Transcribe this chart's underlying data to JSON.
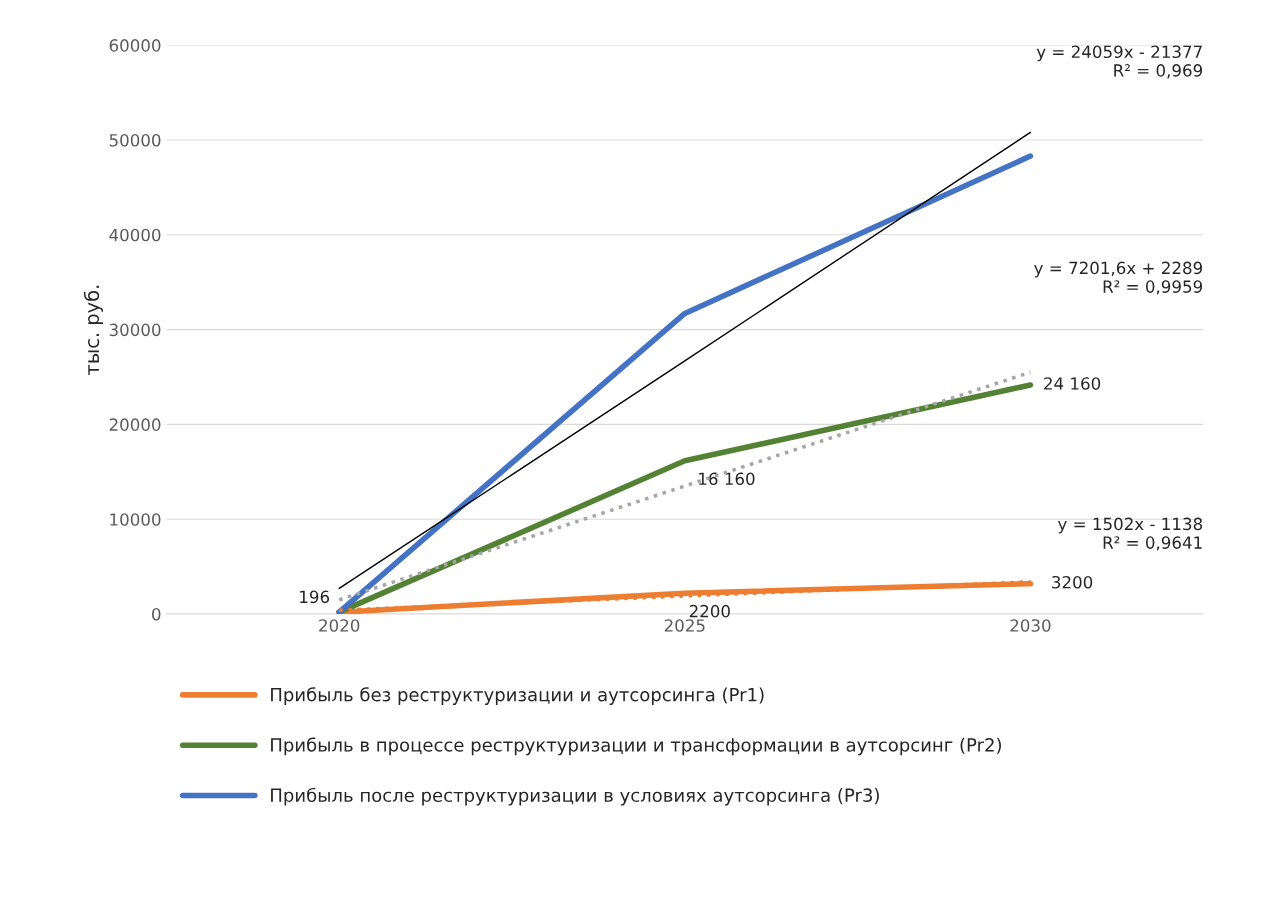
{
  "chart_data": {
    "type": "line",
    "ylabel": "тыс. руб.",
    "categories": [
      "2020",
      "2025",
      "2030"
    ],
    "series": [
      {
        "name": "Прибыль без реструктуризации и аутсорсинга (Pr1)",
        "color": "#ed7d31",
        "values": [
          196,
          2200,
          3200
        ],
        "value_labels": [
          "196",
          "2200",
          "3200"
        ]
      },
      {
        "name": "Прибыль в процессе реструктуризации и трансформации в аутсорсинг (Pr2)",
        "color": "#548235",
        "values": [
          200,
          16160,
          24160
        ],
        "value_labels": [
          null,
          "16 160",
          "24 160"
        ]
      },
      {
        "name": "Прибыль после реструктуризации в условиях аутсорсинга (Pr3)",
        "color": "#4472c4",
        "values": [
          200,
          31700,
          48300
        ]
      },
      {
        "type": "line",
        "color": "#ed7d31",
        "line_style": "dotted",
        "values": [
          400,
          1900,
          3400
        ]
      },
      {
        "type": "line",
        "color": "#a5a5a5",
        "line_style": "dotted",
        "values": [
          1500,
          13500,
          25500
        ]
      },
      {
        "type": "line",
        "color": "#000000",
        "line_style": "solid",
        "values": [
          2700,
          26700,
          50800
        ]
      }
    ],
    "ylim": [
      0,
      60000
    ],
    "yticks": [
      0,
      10000,
      20000,
      30000,
      40000,
      50000,
      60000
    ],
    "grid": "y",
    "legend": "bottom",
    "marker": "none",
    "annotations": [
      "y = 24059x - 21377\nR² = 0,969",
      "y = 7201,6x + 2289\nR² = 0,9959",
      "y = 1502x - 1138\nR² = 0,9641"
    ]
  }
}
